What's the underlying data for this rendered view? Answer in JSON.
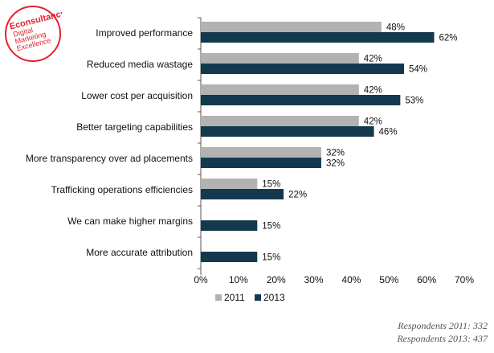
{
  "logo": {
    "line1": "Econsultancy",
    "line2": "Digital",
    "line3": "Marketing",
    "line4": "Excellence"
  },
  "respondents": {
    "line1": "Respondents 2011: 332",
    "line2": "Respondents 2013: 437"
  },
  "colors": {
    "series_2011": "#b2b2b2",
    "series_2013": "#14394f",
    "brand": "#e4202e",
    "axis": "#555555"
  },
  "chart_data": {
    "type": "bar",
    "orientation": "horizontal",
    "categories": [
      "Improved performance",
      "Reduced media wastage",
      "Lower cost per acquisition",
      "Better targeting capabilities",
      "More transparency over ad placements",
      "Trafficking operations efficiencies",
      "We can make higher margins",
      "More accurate attribution"
    ],
    "series": [
      {
        "name": "2011",
        "values": [
          48,
          42,
          42,
          42,
          32,
          15,
          null,
          null
        ]
      },
      {
        "name": "2013",
        "values": [
          62,
          54,
          53,
          46,
          32,
          22,
          15,
          15
        ]
      }
    ],
    "value_suffix": "%",
    "xlim": [
      0,
      70
    ],
    "xticks": [
      "0%",
      "10%",
      "20%",
      "30%",
      "40%",
      "50%",
      "60%",
      "70%"
    ],
    "grid": false,
    "legend_position": "bottom"
  }
}
